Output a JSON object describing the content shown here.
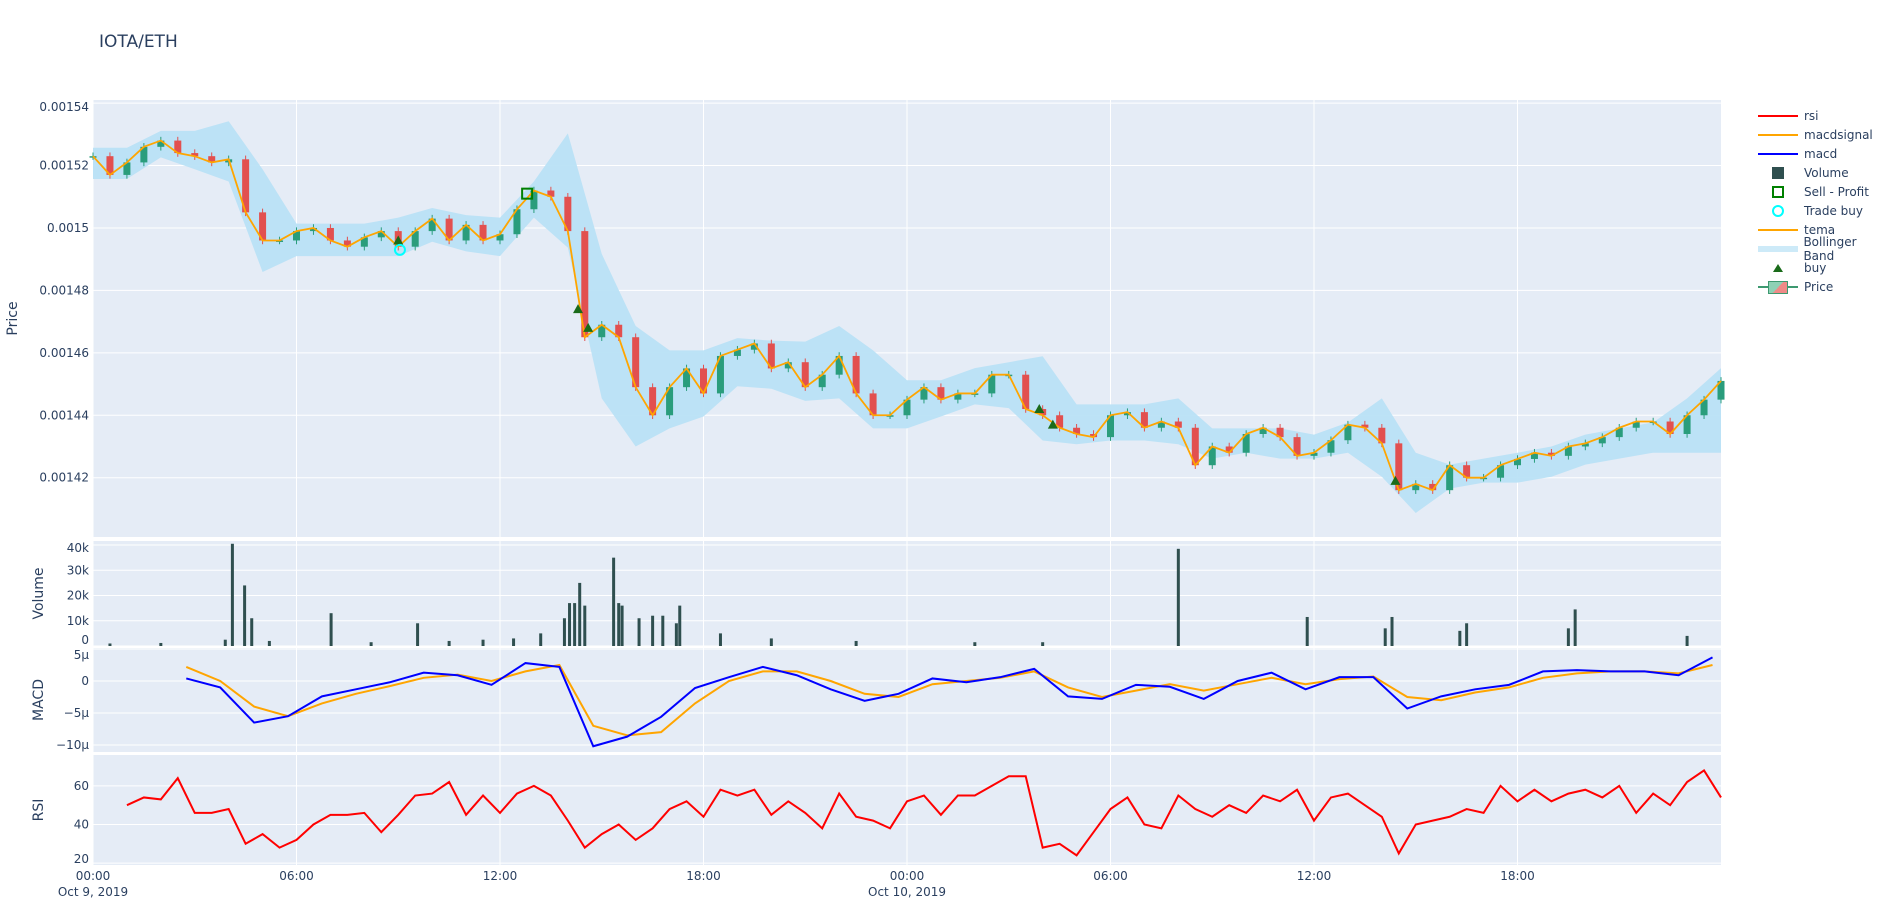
{
  "title": "IOTA/ETH",
  "legend": [
    "rsi",
    "macdsignal",
    "macd",
    "Volume",
    "Sell - Profit",
    "Trade buy",
    "tema",
    "Bollinger Band",
    "buy",
    "Price"
  ],
  "colors": {
    "rsi": "#ff0000",
    "macdsignal": "#ffa500",
    "macd": "#0000ff",
    "volume": "#2f4f4f",
    "sell": "#008000",
    "tradebuy": "#00ffff",
    "tema": "#ffa500",
    "bb": "#b9e1f5",
    "buy": "#1a6b1a",
    "up": "#2a9d7c",
    "down": "#e2504f",
    "plotbg": "#e5ecf6",
    "grid": "#ffffff"
  },
  "chart_data": {
    "type": "candlestick",
    "title": "IOTA/ETH",
    "x_axis": {
      "start": "2019-10-09 00:00",
      "end": "2019-10-10 23:55",
      "tick_labels": [
        "00:00",
        "06:00",
        "12:00",
        "18:00",
        "00:00",
        "06:00",
        "12:00",
        "18:00"
      ],
      "tick_hours": [
        0,
        6,
        12,
        18,
        24,
        30,
        36,
        42
      ],
      "date_labels": [
        {
          "hour": 0,
          "label": "Oct 9, 2019"
        },
        {
          "hour": 24,
          "label": "Oct 10, 2019"
        }
      ]
    },
    "price": {
      "ylabel": "Price",
      "ylim": [
        0.001401,
        0.001541
      ],
      "ticks": [
        0.00142,
        0.00144,
        0.00146,
        0.00148,
        0.0015,
        0.00152,
        0.00154
      ],
      "tick_labels": [
        "0.00142",
        "0.00144",
        "0.00146",
        "0.00148",
        "0.0015",
        "0.00152",
        "0.00154"
      ],
      "close_start_hour": 0,
      "close_step_hours": 0.5,
      "close": [
        0.001523,
        0.001517,
        0.001521,
        0.001526,
        0.001528,
        0.001524,
        0.001523,
        0.001521,
        0.001522,
        0.001505,
        0.001496,
        0.001496,
        0.001499,
        0.0015,
        0.001496,
        0.001494,
        0.001497,
        0.001499,
        0.001494,
        0.001499,
        0.001503,
        0.001496,
        0.001501,
        0.001496,
        0.001498,
        0.001506,
        0.001512,
        0.00151,
        0.001499,
        0.001465,
        0.001469,
        0.001465,
        0.001449,
        0.00144,
        0.001449,
        0.001455,
        0.001447,
        0.001459,
        0.001461,
        0.001463,
        0.001455,
        0.001457,
        0.001449,
        0.001453,
        0.001459,
        0.001447,
        0.00144,
        0.00144,
        0.001445,
        0.001449,
        0.001445,
        0.001447,
        0.001447,
        0.001453,
        0.001453,
        0.001442,
        0.00144,
        0.001436,
        0.001434,
        0.001433,
        0.00144,
        0.001441,
        0.001436,
        0.001438,
        0.001436,
        0.001424,
        0.00143,
        0.001428,
        0.001434,
        0.001436,
        0.001433,
        0.001427,
        0.001428,
        0.001432,
        0.001437,
        0.001436,
        0.001431,
        0.001416,
        0.001418,
        0.001416,
        0.001424,
        0.00142,
        0.00142,
        0.001424,
        0.001426,
        0.001428,
        0.001427,
        0.00143,
        0.001431,
        0.001433,
        0.001436,
        0.001438,
        0.001438,
        0.001434,
        0.00144,
        0.001445,
        0.001451
      ],
      "bb_step_hours": 1,
      "bb_upper": [
        0.0015257,
        0.0015257,
        0.0015311,
        0.0015311,
        0.0015342,
        0.0015188,
        0.0015014,
        0.0015014,
        0.0015014,
        0.0015033,
        0.0015064,
        0.0015041,
        0.0015033,
        0.0015149,
        0.0015303,
        0.0014917,
        0.0014686,
        0.0014608,
        0.0014608,
        0.0014647,
        0.0014639,
        0.0014636,
        0.0014686,
        0.0014608,
        0.0014512,
        0.0014512,
        0.0014551,
        0.001457,
        0.0014589,
        0.0014435,
        0.0014435,
        0.0014435,
        0.0014454,
        0.0014358,
        0.0014358,
        0.0014358,
        0.0014338,
        0.0014377,
        0.0014454,
        0.001428,
        0.0014242,
        0.0014261,
        0.001428,
        0.00143,
        0.0014338,
        0.0014358,
        0.0014377,
        0.0014454,
        0.0014551
      ],
      "bb_lower": [
        0.0015157,
        0.0015157,
        0.0015226,
        0.0015188,
        0.0015149,
        0.0014859,
        0.001491,
        0.001491,
        0.001491,
        0.001491,
        0.0014956,
        0.0014925,
        0.001491,
        0.0015033,
        0.0014937,
        0.0014454,
        0.00143,
        0.0014358,
        0.0014396,
        0.0014493,
        0.0014485,
        0.0014446,
        0.0014454,
        0.0014358,
        0.0014358,
        0.0014396,
        0.0014435,
        0.0014423,
        0.0014319,
        0.0014307,
        0.0014319,
        0.0014319,
        0.0014307,
        0.0014261,
        0.001428,
        0.0014261,
        0.0014261,
        0.001428,
        0.0014203,
        0.0014087,
        0.0014165,
        0.0014184,
        0.0014184,
        0.0014203,
        0.0014242,
        0.0014261,
        0.001428,
        0.001428,
        0.001428
      ],
      "buy": [
        [
          9.0,
          0.001496
        ],
        [
          14.3,
          0.001474
        ],
        [
          14.6,
          0.001468
        ],
        [
          27.9,
          0.001442
        ],
        [
          28.3,
          0.001437
        ],
        [
          38.4,
          0.001419
        ]
      ],
      "trade_buy": [
        [
          9.05,
          0.001493
        ]
      ],
      "sell_profit": [
        [
          12.8,
          0.001511
        ]
      ]
    },
    "volume": {
      "ylabel": "Volume",
      "ylim": [
        0,
        41600
      ],
      "ticks": [
        0,
        10000,
        20000,
        30000,
        40000
      ],
      "tick_labels": [
        "0",
        "10k",
        "20k",
        "30k",
        "40k"
      ],
      "bars": [
        [
          0.5,
          1000
        ],
        [
          2,
          1200
        ],
        [
          3.9,
          2500
        ],
        [
          4.11,
          40500
        ],
        [
          4.47,
          24000
        ],
        [
          4.68,
          11000
        ],
        [
          5.2,
          2000
        ],
        [
          7.02,
          13000
        ],
        [
          8.2,
          1500
        ],
        [
          9.57,
          9000
        ],
        [
          10.5,
          2000
        ],
        [
          11.5,
          2500
        ],
        [
          12.4,
          3000
        ],
        [
          13.2,
          5000
        ],
        [
          13.9,
          11000
        ],
        [
          14.05,
          17000
        ],
        [
          14.2,
          17000
        ],
        [
          14.35,
          25000
        ],
        [
          14.5,
          16000
        ],
        [
          15.35,
          35000
        ],
        [
          15.5,
          17000
        ],
        [
          15.6,
          16000
        ],
        [
          16.1,
          11000
        ],
        [
          16.5,
          12000
        ],
        [
          16.8,
          12000
        ],
        [
          17.2,
          9000
        ],
        [
          17.3,
          16000
        ],
        [
          18.5,
          5000
        ],
        [
          20,
          3000
        ],
        [
          22.5,
          2000
        ],
        [
          26,
          1500
        ],
        [
          28,
          1500
        ],
        [
          32,
          38500
        ],
        [
          35.8,
          11500
        ],
        [
          38.1,
          7000
        ],
        [
          38.3,
          11500
        ],
        [
          40.3,
          6000
        ],
        [
          40.5,
          9000
        ],
        [
          43.5,
          7000
        ],
        [
          43.7,
          14500
        ],
        [
          47,
          4000
        ]
      ]
    },
    "macd": {
      "ylabel": "MACD",
      "ylim": [
        -1.11e-05,
        5.16e-06
      ],
      "ticks": [
        -1e-05,
        -5e-06,
        0,
        5e-06
      ],
      "tick_labels": [
        "−10µ",
        "−5µ",
        "0",
        "5µ"
      ],
      "start_hour": 2.75,
      "step_hours": 1,
      "macd": [
        4e-07,
        -1e-06,
        -6.5e-06,
        -5.5e-06,
        -2.4e-06,
        -1.3e-06,
        -2e-07,
        1.3e-06,
        9e-07,
        -6e-07,
        2.8e-06,
        2.2e-06,
        -1.02e-05,
        -8.7e-06,
        -5.6e-06,
        -1.1e-06,
        6e-07,
        2.2e-06,
        9e-07,
        -1.3e-06,
        -3.1e-06,
        -2e-06,
        4e-07,
        -2e-07,
        6e-07,
        1.9e-06,
        -2.4e-06,
        -2.8e-06,
        -6e-07,
        -9e-07,
        -2.8e-06,
        0,
        1.3e-06,
        -1.3e-06,
        6e-07,
        6e-07,
        -4.3e-06,
        -2.4e-06,
        -1.3e-06,
        -6e-07,
        1.5e-06,
        1.7e-06,
        1.5e-06,
        1.5e-06,
        9e-07,
        3.7e-06
      ],
      "macdsignal": [
        2.2e-06,
        0,
        -4e-06,
        -5.5e-06,
        -3.5e-06,
        -2e-06,
        -8e-07,
        5e-07,
        1e-06,
        0,
        1.5e-06,
        2.5e-06,
        -7e-06,
        -8.5e-06,
        -8e-06,
        -3.5e-06,
        0,
        1.5e-06,
        1.5e-06,
        0,
        -2e-06,
        -2.5e-06,
        -5e-07,
        0,
        5e-07,
        1.5e-06,
        -1e-06,
        -2.5e-06,
        -1.5e-06,
        -5e-07,
        -1.5e-06,
        -5e-07,
        5e-07,
        -5e-07,
        3e-07,
        7e-07,
        -2.5e-06,
        -3e-06,
        -1.8e-06,
        -1e-06,
        5e-07,
        1.2e-06,
        1.5e-06,
        1.5e-06,
        1.2e-06,
        2.5e-06
      ]
    },
    "rsi": {
      "ylabel": "RSI",
      "ylim": [
        19,
        76
      ],
      "ticks": [
        20,
        40,
        60
      ],
      "tick_labels": [
        "20",
        "40",
        "60"
      ],
      "start_hour": 1,
      "step_hours": 0.5,
      "values": [
        50,
        54,
        53,
        64,
        46,
        46,
        48,
        30,
        35,
        28,
        32,
        40,
        45,
        45,
        46,
        36,
        45,
        55,
        56,
        62,
        45,
        55,
        46,
        56,
        60,
        55,
        42,
        28,
        35,
        40,
        32,
        38,
        48,
        52,
        44,
        58,
        55,
        58,
        45,
        52,
        46,
        38,
        56,
        44,
        42,
        38,
        52,
        55,
        45,
        55,
        55,
        60,
        65,
        65,
        28,
        30,
        24,
        36,
        48,
        54,
        40,
        38,
        55,
        48,
        44,
        50,
        46,
        55,
        52,
        58,
        42,
        54,
        56,
        50,
        44,
        25,
        40,
        42,
        44,
        48,
        46,
        60,
        52,
        58,
        52,
        56,
        58,
        54,
        60,
        46,
        56,
        50,
        62,
        68,
        54
      ]
    }
  }
}
